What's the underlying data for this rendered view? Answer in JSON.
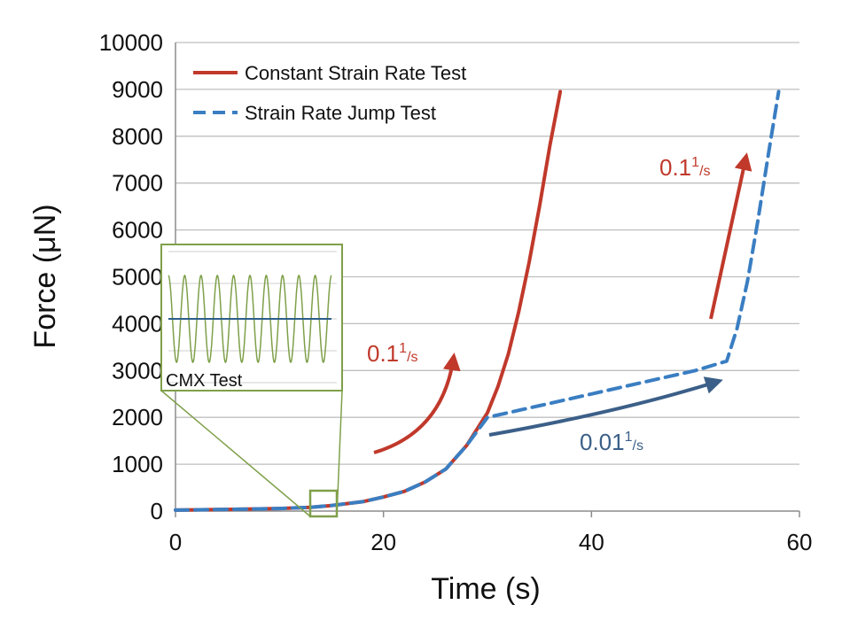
{
  "chart_data": {
    "type": "line",
    "xlabel": "Time (s)",
    "ylabel": "Force (μN)",
    "xlim": [
      0,
      60
    ],
    "ylim": [
      0,
      10000
    ],
    "x_ticks": [
      "0",
      "20",
      "40",
      "60"
    ],
    "y_ticks": [
      "0",
      "1000",
      "2000",
      "3000",
      "4000",
      "5000",
      "6000",
      "7000",
      "8000",
      "9000",
      "10000"
    ],
    "grid": true,
    "legend_position": "top-left",
    "colors": {
      "constant": "#c0392b",
      "jump": "#3a7ec2",
      "arrow_blue": "#3b5f88",
      "inset": "#7fa04a"
    },
    "series": [
      {
        "name": "Constant Strain Rate Test",
        "style": "solid",
        "x": [
          0,
          5,
          10,
          13,
          15,
          18,
          20,
          22,
          24,
          26,
          28,
          30,
          31,
          32,
          33,
          34,
          35,
          36,
          37
        ],
        "y": [
          20,
          35,
          55,
          80,
          120,
          200,
          300,
          420,
          620,
          900,
          1400,
          2100,
          2650,
          3350,
          4250,
          5300,
          6500,
          7800,
          8950
        ]
      },
      {
        "name": "Strain Rate Jump Test",
        "style": "dashed",
        "x": [
          0,
          5,
          10,
          13,
          15,
          18,
          20,
          22,
          24,
          26,
          28,
          30,
          35,
          40,
          45,
          50,
          53,
          54,
          55,
          56,
          57,
          58
        ],
        "y": [
          20,
          35,
          55,
          80,
          120,
          200,
          300,
          420,
          620,
          900,
          1400,
          2000,
          2250,
          2500,
          2750,
          3000,
          3200,
          3900,
          4900,
          6200,
          7600,
          8950
        ]
      }
    ],
    "annotations": [
      {
        "label": "0.1",
        "sup": "1",
        "unit": "/s",
        "color": "#c0392b"
      },
      {
        "label": "0.01",
        "sup": "1",
        "unit": "/s",
        "color": "#3b5f88"
      },
      {
        "label": "0.1",
        "sup": "1",
        "unit": "/s",
        "color": "#c0392b"
      }
    ],
    "inset": {
      "label": "CMX Test",
      "zoom_x": [
        13,
        15.5
      ],
      "zoom_y": [
        0,
        350
      ]
    }
  }
}
